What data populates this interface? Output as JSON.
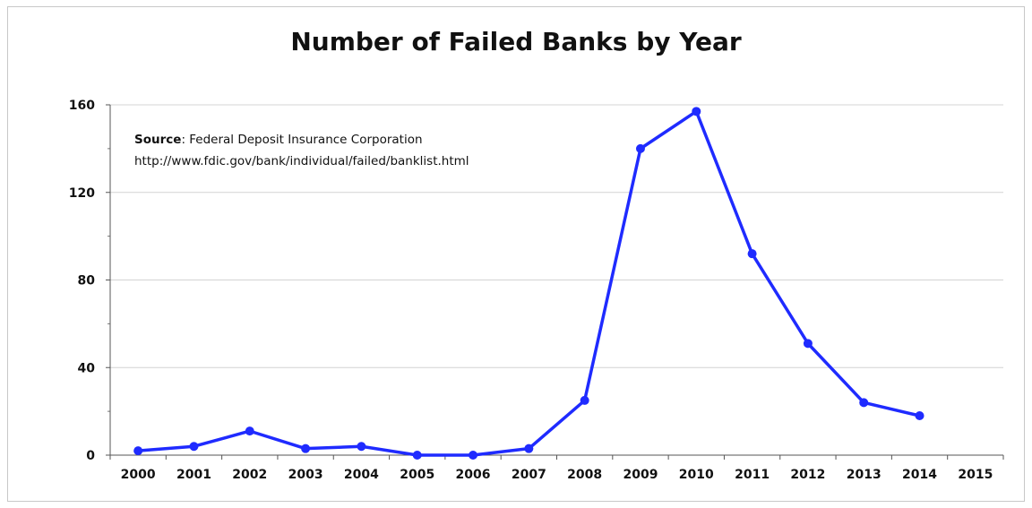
{
  "chart_data": {
    "type": "line",
    "title": "Number of Failed Banks by Year",
    "xlabel": "",
    "ylabel": "",
    "categories": [
      "2000",
      "2001",
      "2002",
      "2003",
      "2004",
      "2005",
      "2006",
      "2007",
      "2008",
      "2009",
      "2010",
      "2011",
      "2012",
      "2013",
      "2014",
      "2015"
    ],
    "series": [
      {
        "values": [
          2,
          4,
          11,
          3,
          4,
          0,
          0,
          3,
          25,
          140,
          157,
          92,
          51,
          24,
          18,
          null
        ]
      }
    ],
    "ylim": [
      0,
      160
    ],
    "yticks": [
      "0",
      "40",
      "80",
      "120",
      "160"
    ],
    "grid": true,
    "color": "#1f2bff"
  },
  "annotation": {
    "source_label": "Source",
    "source_text": ":  Federal Deposit Insurance Corporation",
    "url": "http://www.fdic.gov/bank/individual/failed/banklist.html"
  }
}
